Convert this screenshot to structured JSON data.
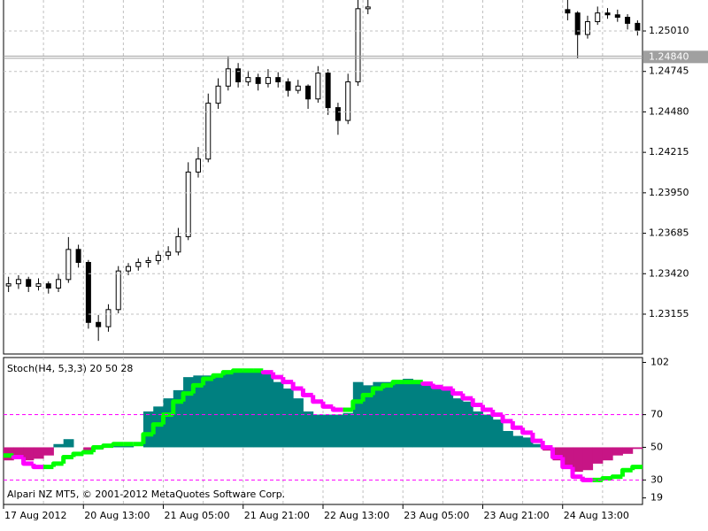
{
  "chart_data": [
    {
      "type": "candlestick",
      "categories": [
        "17 Aug 2012",
        null,
        null,
        null,
        null,
        null,
        null,
        null,
        "20 Aug 13:00",
        null,
        null,
        null,
        null,
        null,
        null,
        null,
        "21 Aug 05:00",
        null,
        null,
        null,
        null,
        null,
        null,
        null,
        "21 Aug 21:00",
        null,
        null,
        null,
        null,
        null,
        null,
        null,
        "22 Aug 13:00",
        null,
        null,
        null,
        null,
        null,
        null,
        null,
        "23 Aug 05:00",
        null,
        null,
        null,
        null,
        null,
        null,
        null,
        "23 Aug 21:00",
        null,
        null,
        null,
        null,
        null,
        null,
        null,
        "24 Aug 13:00",
        null,
        null,
        null,
        null,
        null,
        null,
        null
      ],
      "open": [
        1.2334,
        1.23354,
        1.23382,
        1.23337,
        1.23354,
        1.23326,
        1.23382,
        1.23579,
        1.23494,
        1.23101,
        1.23073,
        1.23185,
        1.23438,
        1.23467,
        1.23494,
        1.23506,
        1.2354,
        1.23562,
        1.23663,
        1.24086,
        1.24171,
        1.24537,
        1.24649,
        1.24762,
        1.24677,
        1.24705,
        1.24666,
        1.24705,
        1.24677,
        1.24621,
        1.24649,
        1.24565,
        1.24734,
        1.24508,
        1.24424,
        1.24677,
        1.25156,
        null,
        null,
        null,
        null,
        null,
        null,
        null,
        null,
        null,
        null,
        null,
        null,
        null,
        null,
        null,
        null,
        null,
        null,
        null,
        1.2515,
        1.25128,
        1.24987,
        1.25071,
        1.25128,
        1.25116,
        1.251,
        1.2506
      ],
      "high": [
        1.234,
        1.2341,
        1.234,
        1.2339,
        1.2337,
        1.2342,
        1.2366,
        1.2361,
        1.2351,
        1.2315,
        1.2322,
        1.2347,
        1.2349,
        1.2352,
        1.2353,
        1.2357,
        1.236,
        1.2372,
        1.2415,
        1.2425,
        1.246,
        1.247,
        1.2484,
        1.248,
        1.2475,
        1.2473,
        1.2476,
        1.2474,
        1.247,
        1.2469,
        1.2466,
        1.2478,
        1.2476,
        1.2454,
        1.2473,
        1.25213,
        1.25213,
        null,
        null,
        null,
        null,
        null,
        null,
        null,
        null,
        null,
        null,
        null,
        null,
        null,
        null,
        null,
        null,
        null,
        null,
        null,
        1.25213,
        1.2514,
        1.2511,
        1.2517,
        1.2516,
        1.2515,
        1.2512,
        1.2508
      ],
      "low": [
        1.233,
        1.2332,
        1.233,
        1.2331,
        1.2329,
        1.233,
        1.2336,
        1.2346,
        1.2306,
        1.2298,
        1.2304,
        1.2316,
        1.2341,
        1.2344,
        1.2346,
        1.2348,
        1.2351,
        1.2354,
        1.2364,
        1.2405,
        1.2415,
        1.245,
        1.2462,
        1.2464,
        1.2465,
        1.2462,
        1.2464,
        1.2464,
        1.2458,
        1.246,
        1.245,
        1.2454,
        1.2446,
        1.2433,
        1.244,
        1.2465,
        1.2512,
        null,
        null,
        null,
        null,
        null,
        null,
        null,
        null,
        null,
        null,
        null,
        null,
        null,
        null,
        null,
        null,
        null,
        null,
        null,
        1.2508,
        1.2483,
        1.2496,
        1.2505,
        1.2509,
        1.2507,
        1.2502,
        1.2498
      ],
      "close": [
        1.23354,
        1.23382,
        1.23337,
        1.23354,
        1.23326,
        1.23382,
        1.23579,
        1.23494,
        1.23101,
        1.23073,
        1.23185,
        1.23438,
        1.23467,
        1.23494,
        1.23506,
        1.2354,
        1.23562,
        1.23663,
        1.24086,
        1.24171,
        1.24537,
        1.24649,
        1.24762,
        1.24677,
        1.24705,
        1.24666,
        1.24705,
        1.24677,
        1.24621,
        1.24649,
        1.24565,
        1.24734,
        1.24508,
        1.24424,
        1.24677,
        1.25156,
        1.25167,
        null,
        null,
        null,
        null,
        null,
        null,
        null,
        null,
        null,
        null,
        null,
        null,
        null,
        null,
        null,
        null,
        null,
        null,
        null,
        1.25128,
        1.24987,
        1.25071,
        1.25128,
        1.25116,
        1.251,
        1.2506,
        1.25015
      ],
      "up_color": "#ffffff",
      "down_color": "#000000",
      "line_color": "#000000",
      "ylim": [
        1.22894,
        1.25213
      ],
      "yticks": [
        {
          "value": 1.2501,
          "label": "1.25010"
        },
        1.24745,
        {
          "value": 1.2448,
          "label": "1.24480"
        },
        1.24215,
        {
          "value": 1.2395,
          "label": "1.23950"
        },
        1.23685,
        {
          "value": 1.2342,
          "label": "1.23420"
        },
        1.23155
      ],
      "current_price": {
        "value": 1.2484,
        "label": "1.24840"
      },
      "grid": true
    },
    {
      "type": "stochastic",
      "title": "Stoch(H4, 5,3,3) 20 50 28",
      "annotation": "Alpari NZ MT5, © 2001-2012 MetaQuotes Software Corp.",
      "series": [
        {
          "style": "fill",
          "base": 50,
          "color": "#008080",
          "down_color": "#c71585",
          "values": [
            42,
            44,
            42,
            43,
            45,
            52,
            55,
            50,
            48,
            49,
            50,
            51,
            51,
            50,
            72,
            75,
            80,
            85,
            93,
            94,
            94,
            95,
            96,
            97,
            97,
            96,
            95,
            90,
            86,
            80,
            72,
            70,
            70,
            70,
            71,
            90,
            88,
            90,
            90,
            91,
            92,
            90,
            88,
            86,
            85,
            80,
            78,
            72,
            70,
            67,
            60,
            57,
            56,
            52,
            48,
            42,
            38,
            35,
            36,
            40,
            42,
            45,
            46,
            49
          ]
        },
        {
          "style": "step-line",
          "color": "#00ff00",
          "down_color": "#ff00ff",
          "values": [
            45,
            44,
            40,
            38,
            38,
            40,
            44,
            46,
            47,
            50,
            51,
            52,
            52,
            52,
            58,
            64,
            70,
            78,
            83,
            88,
            92,
            94,
            96,
            97,
            97,
            97,
            96,
            93,
            90,
            86,
            82,
            78,
            75,
            73,
            73,
            78,
            82,
            86,
            88,
            90,
            90,
            90,
            89,
            87,
            86,
            83,
            80,
            76,
            73,
            70,
            66,
            62,
            59,
            54,
            50,
            44,
            38,
            32,
            30,
            30,
            31,
            32,
            36,
            38
          ]
        }
      ],
      "levels": [
        70,
        30
      ],
      "level_color": "#ff00ff",
      "ylim": [
        15,
        105
      ],
      "yticks": [
        102,
        70,
        50,
        30,
        19
      ]
    }
  ]
}
